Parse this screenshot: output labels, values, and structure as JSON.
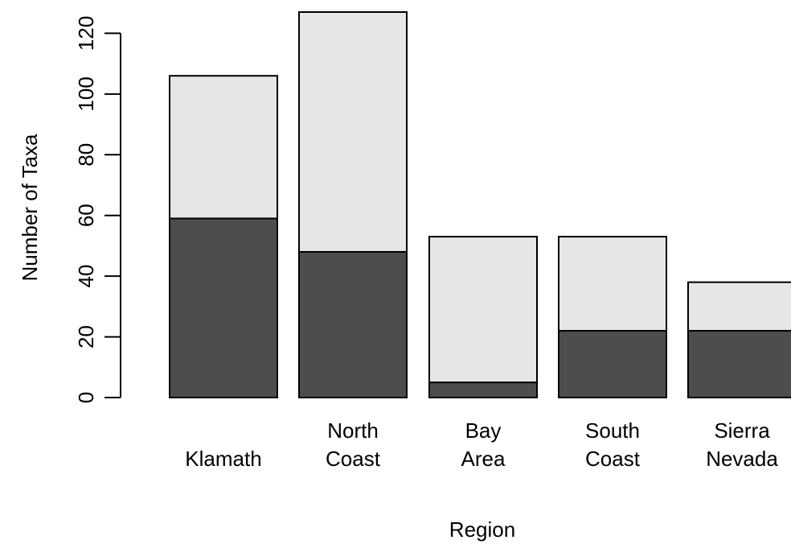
{
  "chart_data": {
    "type": "bar",
    "stacked": true,
    "title": "",
    "xlabel": "Region",
    "ylabel": "Number of Taxa",
    "categories": [
      "Klamath",
      "North Coast",
      "Bay Area",
      "South Coast",
      "Sierra Nevada"
    ],
    "category_lines": [
      [
        "Klamath"
      ],
      [
        "North",
        "Coast"
      ],
      [
        "Bay",
        "Area"
      ],
      [
        "South",
        "Coast"
      ],
      [
        "Sierra",
        "Nevada"
      ]
    ],
    "series": [
      {
        "values": [
          59,
          48,
          5,
          22,
          22
        ],
        "color": "#4d4d4d"
      },
      {
        "values": [
          47,
          79,
          48,
          31,
          16
        ],
        "color": "#e6e6e6"
      }
    ],
    "totals": [
      106,
      127,
      53,
      53,
      38
    ],
    "ylim": [
      0,
      127
    ],
    "yticks": [
      0,
      20,
      40,
      60,
      80,
      100,
      120
    ],
    "grid": false,
    "legend": "none"
  }
}
